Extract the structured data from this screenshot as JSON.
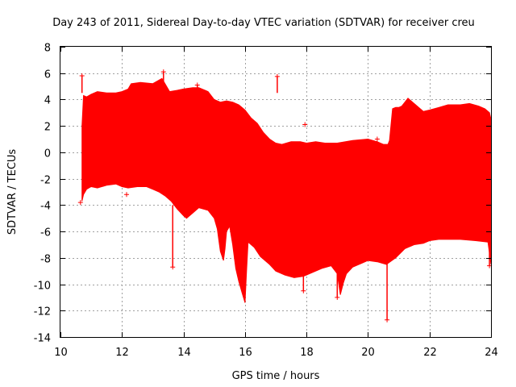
{
  "chart_data": {
    "type": "scatter",
    "title": "Day 243 of 2011, Sidereal Day-to-day VTEC variation (SDTVAR) for receiver creu",
    "xlabel": "GPS time / hours",
    "ylabel": "SDTVAR / TECUs",
    "xlim": [
      10,
      24
    ],
    "ylim": [
      -14,
      8
    ],
    "xticks": [
      10,
      12,
      14,
      16,
      18,
      20,
      22,
      24
    ],
    "yticks": [
      -14,
      -12,
      -10,
      -8,
      -6,
      -4,
      -2,
      0,
      2,
      4,
      6,
      8
    ],
    "grid": true,
    "series": [
      {
        "name": "SDTVAR",
        "color": "#ff0000",
        "upper_envelope": {
          "x": [
            10.7,
            10.75,
            10.85,
            11.0,
            11.2,
            11.5,
            11.8,
            12.0,
            12.2,
            12.3,
            12.6,
            13.0,
            13.3,
            13.45,
            13.55,
            13.8,
            14.0,
            14.3,
            14.5,
            14.8,
            15.0,
            15.2,
            15.4,
            15.6,
            15.8,
            16.0,
            16.2,
            16.4,
            16.6,
            16.8,
            17.0,
            17.2,
            17.5,
            17.8,
            18.0,
            18.3,
            18.6,
            19.0,
            19.5,
            20.0,
            20.3,
            20.5,
            20.65,
            20.7,
            20.8,
            20.9,
            21.0,
            21.1,
            21.3,
            21.5,
            21.8,
            22.0,
            22.3,
            22.6,
            23.0,
            23.3,
            23.6,
            23.8,
            23.95,
            24.0
          ],
          "y": [
            2.0,
            4.3,
            4.2,
            4.4,
            4.6,
            4.5,
            4.5,
            4.6,
            4.8,
            5.2,
            5.3,
            5.2,
            5.6,
            5.0,
            4.6,
            4.7,
            4.8,
            4.9,
            4.9,
            4.6,
            4.0,
            3.8,
            3.9,
            3.8,
            3.6,
            3.2,
            2.6,
            2.2,
            1.5,
            1.0,
            0.7,
            0.6,
            0.8,
            0.8,
            0.7,
            0.8,
            0.7,
            0.7,
            0.9,
            1.0,
            0.8,
            0.6,
            0.6,
            0.9,
            3.3,
            3.4,
            3.4,
            3.5,
            4.1,
            3.7,
            3.1,
            3.2,
            3.4,
            3.6,
            3.6,
            3.7,
            3.5,
            3.3,
            3.0,
            2.5
          ]
        },
        "lower_envelope": {
          "x": [
            10.7,
            10.75,
            10.85,
            11.0,
            11.2,
            11.5,
            11.8,
            12.0,
            12.2,
            12.5,
            12.8,
            13.0,
            13.2,
            13.4,
            13.6,
            13.8,
            14.0,
            14.1,
            14.3,
            14.5,
            14.8,
            15.0,
            15.1,
            15.2,
            15.3,
            15.35,
            15.4,
            15.5,
            15.6,
            15.7,
            15.8,
            15.9,
            16.0,
            16.05,
            16.1,
            16.3,
            16.5,
            16.8,
            17.0,
            17.3,
            17.6,
            17.9,
            18.2,
            18.5,
            18.8,
            19.0,
            19.1,
            19.2,
            19.3,
            19.5,
            19.8,
            20.0,
            20.3,
            20.6,
            20.9,
            21.2,
            21.5,
            21.8,
            22.0,
            22.3,
            22.6,
            23.0,
            23.5,
            23.9,
            24.0
          ],
          "y": [
            -3.7,
            -3.2,
            -2.8,
            -2.6,
            -2.7,
            -2.5,
            -2.4,
            -2.6,
            -2.7,
            -2.6,
            -2.6,
            -2.8,
            -3.0,
            -3.3,
            -3.7,
            -4.3,
            -4.8,
            -5.0,
            -4.6,
            -4.2,
            -4.4,
            -5.0,
            -5.8,
            -7.5,
            -8.2,
            -7.3,
            -6.0,
            -5.6,
            -7.0,
            -8.8,
            -9.8,
            -10.6,
            -11.4,
            -9.0,
            -6.8,
            -7.2,
            -7.9,
            -8.5,
            -9.0,
            -9.3,
            -9.5,
            -9.4,
            -9.1,
            -8.8,
            -8.6,
            -9.2,
            -10.8,
            -9.9,
            -9.2,
            -8.7,
            -8.4,
            -8.2,
            -8.3,
            -8.5,
            -8.0,
            -7.3,
            -7.0,
            -6.9,
            -6.7,
            -6.6,
            -6.6,
            -6.6,
            -6.7,
            -6.8,
            -8.5
          ]
        },
        "outliers": [
          {
            "x": 10.7,
            "y": 5.8
          },
          {
            "x": 13.35,
            "y": 6.1
          },
          {
            "x": 14.45,
            "y": 5.1
          },
          {
            "x": 17.05,
            "y": 5.75
          },
          {
            "x": 17.95,
            "y": 2.1
          },
          {
            "x": 20.3,
            "y": 1.0
          },
          {
            "x": 17.9,
            "y": -10.5
          },
          {
            "x": 19.0,
            "y": -11.0
          },
          {
            "x": 20.62,
            "y": -12.7
          },
          {
            "x": 13.65,
            "y": -8.7
          },
          {
            "x": 12.15,
            "y": -3.2
          },
          {
            "x": 10.65,
            "y": -3.8
          },
          {
            "x": 23.95,
            "y": -8.6
          }
        ]
      }
    ]
  }
}
